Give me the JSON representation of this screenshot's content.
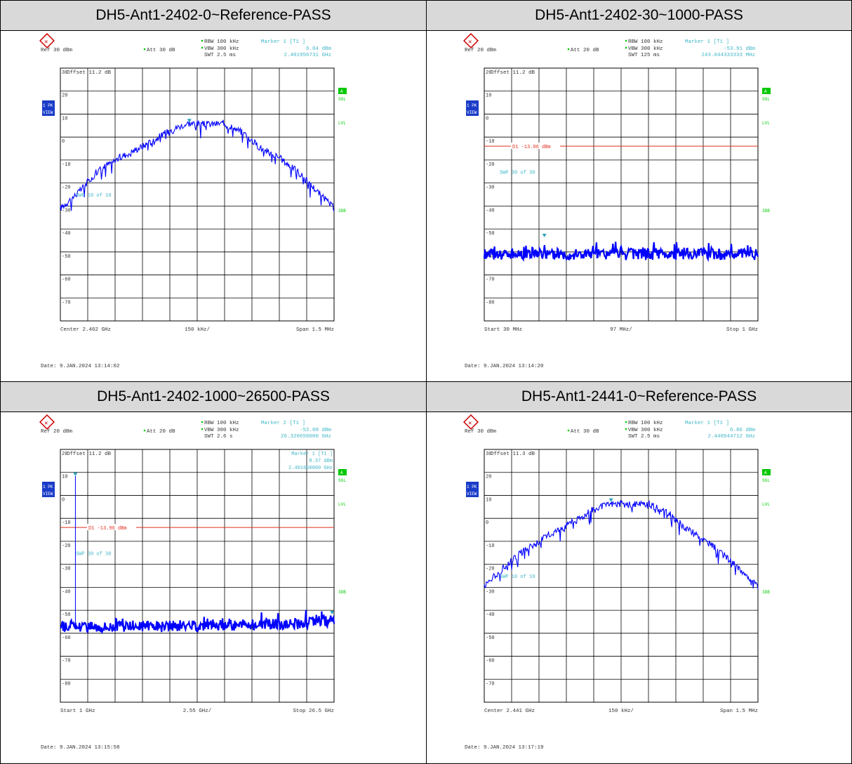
{
  "panels": [
    {
      "title": "DH5-Ant1-2402-0~Reference-PASS",
      "ref": "Ref  30 dBm",
      "att": "Att  30 dB",
      "rbw": "RBW 100 kHz",
      "vbw": "VBW 300 kHz",
      "swt": "SWT 2.5 ms",
      "marker_label": "Marker 1 [T1 ]",
      "marker_level": "6.04 dBm",
      "marker_freq": "2.401956731 GHz",
      "marker2_label": "",
      "marker2_level": "",
      "marker2_freq": "",
      "offset": "Offset  11.2 dB",
      "limit_label": "",
      "swp": "SWP   10 of   10",
      "x_left": "Center  2.402 GHz",
      "x_mid": "150 kHz/",
      "x_right": "Span  1.5 MHz",
      "date": "Date: 9.JAN.2024  13:14:02",
      "side_a": "A",
      "side_sgl": "SGL",
      "side_lvl": "LVL",
      "side_3db": "3DB",
      "left_pk": "1 PK",
      "left_view": "VIEW",
      "colors": {
        "trace": "#0000ff",
        "text": "#3fb6c8",
        "limit": "#e0301e",
        "badge": "#00c800"
      }
    },
    {
      "title": "DH5-Ant1-2402-30~1000-PASS",
      "ref": "Ref  20 dBm",
      "att": "Att  20 dB",
      "rbw": "RBW 100 kHz",
      "vbw": "VBW 300 kHz",
      "swt": "SWT 125 ms",
      "marker_label": "Marker 1 [T1 ]",
      "marker_level": "-53.91 dBm",
      "marker_freq": "243.044333333 MHz",
      "marker2_label": "",
      "marker2_level": "",
      "marker2_freq": "",
      "offset": "Offset  11.2 dB",
      "limit_label": "D1 -13.96 dBm",
      "swp": "SWP   30 of   30",
      "x_left": "Start  30 MHz",
      "x_mid": "97 MHz/",
      "x_right": "Stop  1 GHz",
      "date": "Date: 9.JAN.2024  13:14:20",
      "side_a": "A",
      "side_sgl": "SGL",
      "side_lvl": "LVL",
      "side_3db": "3DB",
      "left_pk": "1 PK",
      "left_view": "VIEW",
      "colors": {
        "trace": "#0000ff",
        "text": "#3fb6c8",
        "limit": "#e0301e",
        "badge": "#00c800"
      }
    },
    {
      "title": "DH5-Ant1-2402-1000~26500-PASS",
      "ref": "Ref  20 dBm",
      "att": "Att  20 dB",
      "rbw": "RBW 100 kHz",
      "vbw": "VBW 300 kHz",
      "swt": "SWT 2.6 s",
      "marker_label": "Marker 2 [T1 ]",
      "marker_level": "-52.08 dBm",
      "marker_freq": "26.320650000 GHz",
      "marker2_label": "Marker 1 [T1 ]",
      "marker2_level": "8.37 dBm",
      "marker2_freq": "2.401650000 GHz",
      "offset": "Offset  11.2 dB",
      "limit_label": "D1 -13.96 dBm",
      "swp": "SWP   30 of   30",
      "x_left": "Start  1 GHz",
      "x_mid": "2.55 GHz/",
      "x_right": "Stop  26.5 GHz",
      "date": "Date: 9.JAN.2024  13:15:58",
      "side_a": "A",
      "side_sgl": "SGL",
      "side_lvl": "LVL",
      "side_3db": "3DB",
      "left_pk": "1 PK",
      "left_view": "VIEW",
      "colors": {
        "trace": "#0000ff",
        "text": "#3fb6c8",
        "limit": "#e0301e",
        "badge": "#00c800"
      }
    },
    {
      "title": "DH5-Ant1-2441-0~Reference-PASS",
      "ref": "Ref  30 dBm",
      "att": "Att  30 dB",
      "rbw": "RBW 100 kHz",
      "vbw": "VBW 300 kHz",
      "swt": "SWT 2.5 ms",
      "marker_label": "Marker 1 [T1 ]",
      "marker_level": "6.86 dBm",
      "marker_freq": "2.440944712 GHz",
      "marker2_label": "",
      "marker2_level": "",
      "marker2_freq": "",
      "offset": "Offset  11.3 dB",
      "limit_label": "",
      "swp": "SWP   10 of   10",
      "x_left": "Center  2.441 GHz",
      "x_mid": "150 kHz/",
      "x_right": "Span  1.5 MHz",
      "date": "Date: 9.JAN.2024  13:17:19",
      "side_a": "A",
      "side_sgl": "SGL",
      "side_lvl": "LVL",
      "side_3db": "3DB",
      "left_pk": "1 PK",
      "left_view": "VIEW",
      "colors": {
        "trace": "#0000ff",
        "text": "#3fb6c8",
        "limit": "#e0301e",
        "badge": "#00c800"
      }
    }
  ],
  "chart_data": [
    {
      "type": "line",
      "title": "DH5-Ant1-2402-0~Reference-PASS",
      "ylabel": "dBm",
      "ylim": [
        -80,
        30
      ],
      "yticks": [
        30,
        20,
        10,
        0,
        -10,
        -20,
        -30,
        -40,
        -50,
        -60,
        -70
      ],
      "x_unit": "GHz",
      "xlim": [
        2.40125,
        2.40275
      ],
      "kind": "bell",
      "series": [
        {
          "values": [
            -31,
            -24,
            -15,
            -10,
            -6,
            -2,
            3,
            6,
            5.5,
            6,
            2,
            -5,
            -9,
            -15,
            -23,
            -31
          ]
        }
      ],
      "marker": {
        "x": 2.401956731,
        "y": 6.04
      },
      "limit_line": null
    },
    {
      "type": "line",
      "title": "DH5-Ant1-2402-30~1000-PASS",
      "ylabel": "dBm",
      "ylim": [
        -90,
        20
      ],
      "yticks": [
        20,
        10,
        0,
        -10,
        -20,
        -30,
        -40,
        -50,
        -60,
        -70,
        -80
      ],
      "x_unit": "MHz",
      "xlim": [
        30,
        1000
      ],
      "kind": "noise",
      "series": [
        {
          "values": [
            -61,
            -61,
            -61,
            -61,
            -61,
            -61,
            -61,
            -61,
            -61,
            -61,
            -61
          ]
        }
      ],
      "marker": {
        "x": 243.044333333,
        "y": -53.91
      },
      "limit_line": -13.96
    },
    {
      "type": "line",
      "title": "DH5-Ant1-2402-1000~26500-PASS",
      "ylabel": "dBm",
      "ylim": [
        -90,
        20
      ],
      "yticks": [
        20,
        10,
        0,
        -10,
        -20,
        -30,
        -40,
        -50,
        -60,
        -70,
        -80
      ],
      "x_unit": "GHz",
      "xlim": [
        1,
        26.5
      ],
      "kind": "noise",
      "series": [
        {
          "values": [
            -57,
            -57,
            -57,
            -57,
            -57,
            -56.5,
            -56.5,
            -56,
            -56,
            -55.5,
            -54.5
          ]
        }
      ],
      "marker": {
        "x": 26.32065,
        "y": -52.08
      },
      "marker2": {
        "x": 2.40165,
        "y": 8.37
      },
      "limit_line": -13.96
    },
    {
      "type": "line",
      "title": "DH5-Ant1-2441-0~Reference-PASS",
      "ylabel": "dBm",
      "ylim": [
        -80,
        30
      ],
      "yticks": [
        30,
        20,
        10,
        0,
        -10,
        -20,
        -30,
        -40,
        -50,
        -60,
        -70
      ],
      "x_unit": "GHz",
      "xlim": [
        2.44025,
        2.44175
      ],
      "kind": "bell",
      "series": [
        {
          "values": [
            -29,
            -22,
            -15,
            -10,
            -5,
            -1,
            4,
            6.5,
            6,
            6,
            3,
            -4,
            -9,
            -15,
            -22,
            -30
          ]
        }
      ],
      "marker": {
        "x": 2.440944712,
        "y": 6.86
      },
      "limit_line": null
    }
  ]
}
